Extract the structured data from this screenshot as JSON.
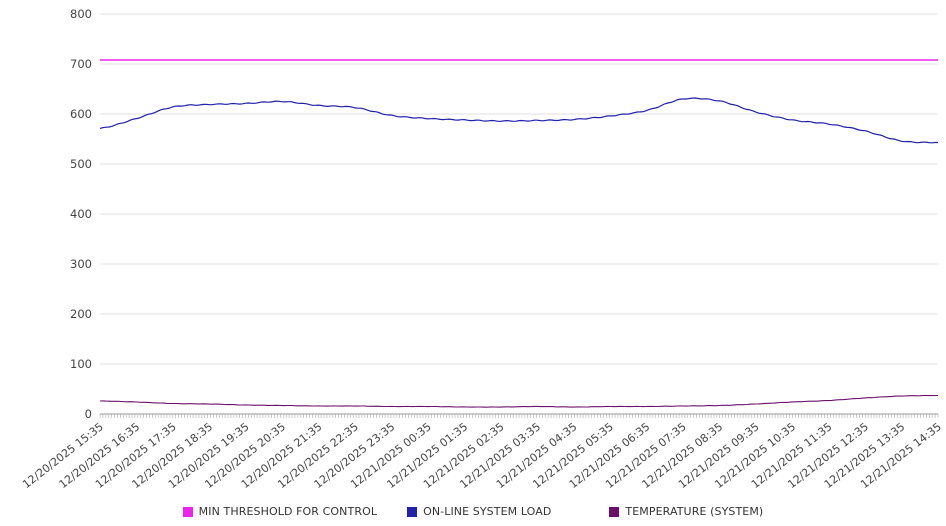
{
  "chart_data": {
    "type": "line",
    "title": "",
    "xlabel": "",
    "ylabel": "",
    "ylim": [
      0,
      800
    ],
    "y_ticks": [
      0,
      100,
      200,
      300,
      400,
      500,
      600,
      700,
      800
    ],
    "grid": "horizontal",
    "legend_position": "bottom",
    "x_labels": [
      "12/20/2025 15:35",
      "12/20/2025 16:35",
      "12/20/2025 17:35",
      "12/20/2025 18:35",
      "12/20/2025 19:35",
      "12/20/2025 20:35",
      "12/20/2025 21:35",
      "12/20/2025 22:35",
      "12/20/2025 23:35",
      "12/21/2025 00:35",
      "12/21/2025 01:35",
      "12/21/2025 02:35",
      "12/21/2025 03:35",
      "12/21/2025 04:35",
      "12/21/2025 05:35",
      "12/21/2025 06:35",
      "12/21/2025 07:35",
      "12/21/2025 08:35",
      "12/21/2025 09:35",
      "12/21/2025 10:35",
      "12/21/2025 11:35",
      "12/21/2025 12:35",
      "12/21/2025 13:35",
      "12/21/2025 14:35"
    ],
    "series": [
      {
        "name": "MIN THRESHOLD FOR CONTROL",
        "color": "#ee22ee",
        "stroke_width": 1.6,
        "jitter": 0,
        "values": [
          708,
          708,
          708,
          708,
          708,
          708,
          708,
          708,
          708,
          708,
          708,
          708,
          708,
          708,
          708,
          708,
          708,
          708,
          708,
          708,
          708,
          708,
          708,
          708
        ]
      },
      {
        "name": "ON-LINE SYSTEM LOAD",
        "color": "#2121aa",
        "stroke_width": 1.2,
        "jitter": 2,
        "values": [
          571,
          591,
          614,
          619,
          621,
          625,
          617,
          613,
          597,
          591,
          588,
          586,
          587,
          589,
          596,
          607,
          630,
          626,
          604,
          588,
          580,
          566,
          546,
          543
        ]
      },
      {
        "name": "TEMPERATURE (SYSTEM)",
        "color": "#6b116b",
        "stroke_width": 1.1,
        "jitter": 0.5,
        "values": [
          26,
          24,
          21,
          20,
          18,
          17,
          16,
          16,
          15,
          15,
          14,
          14,
          15,
          14,
          15,
          15,
          16,
          17,
          20,
          24,
          27,
          32,
          36,
          37
        ]
      }
    ]
  },
  "colors": {
    "gridline": "#e2e2e2",
    "axis": "#999999",
    "tick": "#aaaaaa",
    "label_text": "#444444"
  }
}
